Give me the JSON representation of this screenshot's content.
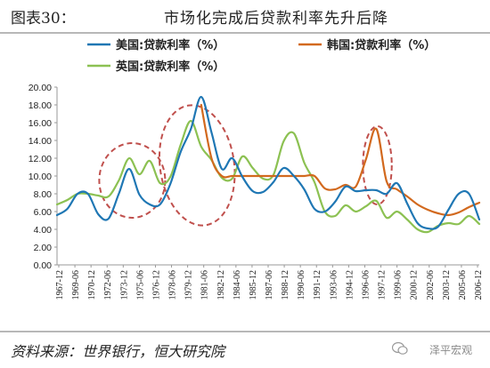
{
  "header": {
    "figure_label": "图表30：",
    "title": "市场化完成后贷款利率先升后降"
  },
  "footer": {
    "source": "资料来源：世界银行，恒大研究院",
    "watermark": "泽平宏观"
  },
  "colors": {
    "us": "#1f77b4",
    "korea": "#d2691e",
    "uk": "#8cc152",
    "highlight": "#c0504d"
  },
  "chart_data": {
    "type": "line",
    "title": "",
    "xlabel": "",
    "ylabel": "",
    "ylim": [
      0,
      20
    ],
    "yticks": [
      "0.00",
      "2.00",
      "4.00",
      "6.00",
      "8.00",
      "10.00",
      "12.00",
      "14.00",
      "16.00",
      "18.00",
      "20.00"
    ],
    "x": [
      1967,
      1968,
      1969,
      1970,
      1971,
      1972,
      1973,
      1974,
      1975,
      1976,
      1977,
      1978,
      1979,
      1980,
      1981,
      1982,
      1983,
      1984,
      1985,
      1986,
      1987,
      1988,
      1989,
      1990,
      1991,
      1992,
      1993,
      1994,
      1995,
      1996,
      1997,
      1998,
      1999,
      2000,
      2001,
      2002,
      2003,
      2004,
      2005,
      2006,
      2007,
      2008
    ],
    "xtick_labels": [
      "1967-12",
      "1969-06",
      "1970-12",
      "1972-06",
      "1973-12",
      "1975-06",
      "1976-12",
      "1978-06",
      "1979-12",
      "1981-06",
      "1982-12",
      "1984-06",
      "1985-12",
      "1987-06",
      "1988-12",
      "1990-06",
      "1991-12",
      "1993-06",
      "1994-12",
      "1996-06",
      "1997-12",
      "1999-06",
      "2000-12",
      "2002-06",
      "2003-12",
      "2005-06",
      "2006-12"
    ],
    "series": [
      {
        "name": "美国:贷款利率（%）",
        "color": "#1f77b4",
        "values": [
          5.6,
          6.3,
          8.0,
          8.0,
          5.7,
          5.2,
          8.0,
          10.8,
          7.9,
          6.8,
          6.8,
          9.1,
          12.7,
          15.3,
          18.9,
          14.9,
          10.8,
          12.0,
          9.9,
          8.3,
          8.2,
          9.3,
          10.9,
          10.0,
          8.5,
          6.3,
          6.0,
          7.1,
          8.8,
          8.3,
          8.4,
          8.4,
          8.0,
          9.2,
          6.9,
          4.7,
          4.1,
          4.3,
          6.2,
          8.0,
          8.0,
          5.1
        ]
      },
      {
        "name": "韩国:贷款利率（%）",
        "color": "#d2691e",
        "values": [
          null,
          null,
          null,
          null,
          null,
          null,
          null,
          null,
          null,
          null,
          null,
          null,
          null,
          null,
          18.0,
          12.0,
          10.0,
          10.0,
          10.0,
          10.0,
          10.0,
          10.0,
          10.0,
          10.0,
          10.0,
          10.0,
          8.6,
          8.5,
          9.0,
          8.8,
          11.9,
          15.3,
          9.4,
          8.5,
          7.7,
          6.8,
          6.2,
          5.8,
          5.6,
          5.9,
          6.5,
          7.0
        ]
      },
      {
        "name": "英国:贷款利率（%）",
        "color": "#8cc152",
        "values": [
          6.8,
          7.3,
          8.0,
          8.0,
          7.8,
          7.7,
          9.5,
          12.0,
          10.2,
          11.7,
          9.2,
          9.9,
          13.5,
          16.2,
          13.3,
          11.8,
          9.8,
          9.7,
          12.2,
          10.9,
          9.7,
          10.1,
          13.9,
          14.8,
          11.5,
          9.3,
          6.0,
          5.5,
          6.7,
          6.0,
          6.6,
          7.2,
          5.3,
          6.0,
          5.1,
          4.0,
          3.7,
          4.4,
          4.7,
          4.6,
          5.5,
          4.6
        ]
      }
    ],
    "legend": "top",
    "grid": false
  }
}
